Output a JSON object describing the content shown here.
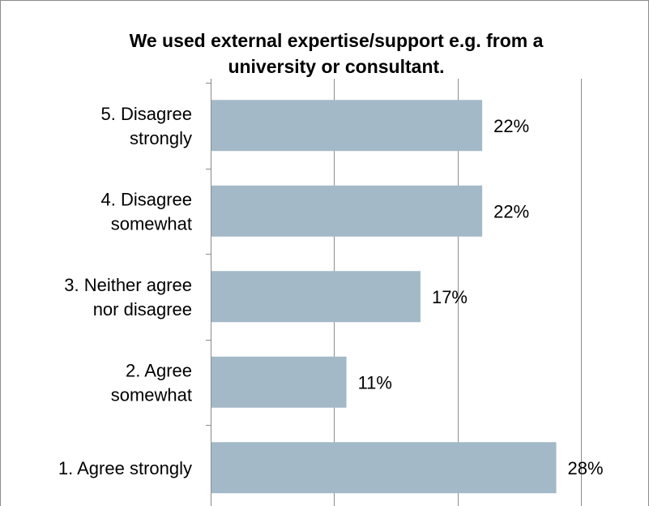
{
  "chart_data": {
    "type": "bar",
    "orientation": "horizontal",
    "title_lines": [
      "We used external expertise/support e.g. from a",
      "university or consultant."
    ],
    "categories": [
      [
        "5. Disagree",
        "strongly"
      ],
      [
        "4. Disagree",
        "somewhat"
      ],
      [
        "3. Neither agree",
        "nor disagree"
      ],
      [
        "2. Agree",
        "somewhat"
      ],
      [
        "1. Agree strongly"
      ]
    ],
    "values": [
      22,
      22,
      17,
      11,
      28
    ],
    "value_labels": [
      "22%",
      "22%",
      "17%",
      "11%",
      "28%"
    ],
    "xlim": [
      0,
      30
    ],
    "x_gridlines": [
      10,
      20,
      30
    ],
    "grid": true,
    "legend": "none",
    "bar_color": "#a3b9c7"
  }
}
